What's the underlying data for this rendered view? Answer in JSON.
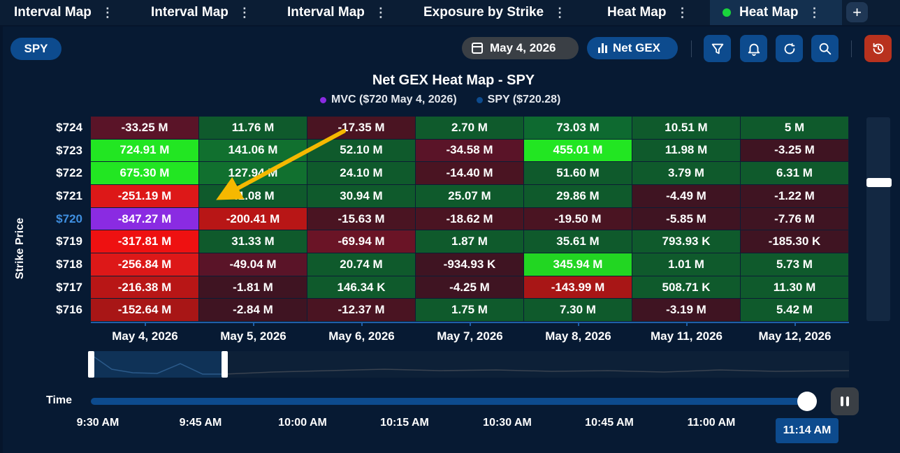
{
  "tabs": [
    {
      "label": "Interval Map",
      "active": false
    },
    {
      "label": "Interval Map",
      "active": false
    },
    {
      "label": "Interval Map",
      "active": false
    },
    {
      "label": "Exposure by Strike",
      "active": false
    },
    {
      "label": "Heat Map",
      "active": false
    },
    {
      "label": "Heat Map",
      "active": true
    }
  ],
  "tab_menu_glyph": "⋮",
  "tab_add_glyph": "+",
  "toolbar": {
    "symbol": "SPY",
    "date": "May 4, 2026",
    "metric": "Net GEX",
    "icons": [
      "filter-icon",
      "bell-icon",
      "refresh-icon",
      "search-icon",
      "reset-icon"
    ]
  },
  "chart": {
    "title": "Net GEX Heat Map - SPY",
    "legend": [
      {
        "label": "MVC ($720 May 4, 2026)",
        "color": "#8a2be2"
      },
      {
        "label": "SPY ($720.28)",
        "color": "#0d4b8e"
      }
    ],
    "y_axis_label": "Strike Price",
    "strikes": [
      "$724",
      "$723",
      "$722",
      "$721",
      "$720",
      "$719",
      "$718",
      "$717",
      "$716"
    ],
    "current_strike": "$720",
    "current_strike_color": "#3f8fe0",
    "dates": [
      "May 4, 2026",
      "May 5, 2026",
      "May 6, 2026",
      "May 7, 2026",
      "May 8, 2026",
      "May 11, 2026",
      "May 12, 2026"
    ],
    "cells": [
      [
        "-33.25 M",
        "11.76 M",
        "-17.35 M",
        "2.70 M",
        "73.03 M",
        "10.51 M",
        "5 M"
      ],
      [
        "724.91 M",
        "141.06 M",
        "52.10 M",
        "-34.58 M",
        "455.01 M",
        "11.98 M",
        "-3.25 M"
      ],
      [
        "675.30 M",
        "127.94 M",
        "24.10 M",
        "-14.40 M",
        "51.60 M",
        "3.79 M",
        "6.31 M"
      ],
      [
        "-251.19 M",
        "41.08 M",
        "30.94 M",
        "25.07 M",
        "29.86 M",
        "-4.49 M",
        "-1.22 M"
      ],
      [
        "-847.27 M",
        "-200.41 M",
        "-15.63 M",
        "-18.62 M",
        "-19.50 M",
        "-5.85 M",
        "-7.76 M"
      ],
      [
        "-317.81 M",
        "31.33 M",
        "-69.94 M",
        "1.87 M",
        "35.61 M",
        "793.93 K",
        "-185.30 K"
      ],
      [
        "-256.84 M",
        "-49.04 M",
        "20.74 M",
        "-934.93 K",
        "345.94 M",
        "1.01 M",
        "5.73 M"
      ],
      [
        "-216.38 M",
        "-1.81 M",
        "146.34 K",
        "-4.25 M",
        "-143.99 M",
        "508.71 K",
        "11.30 M"
      ],
      [
        "-152.64 M",
        "-2.84 M",
        "-12.37 M",
        "1.75 M",
        "7.30 M",
        "-3.19 M",
        "5.42 M"
      ]
    ],
    "cell_colors": [
      [
        "#5a1428",
        "#0f5a2c",
        "#4a1422",
        "#0f5a2c",
        "#0e6a30",
        "#0f5a2c",
        "#0f5a2c"
      ],
      [
        "#22e622",
        "#11702f",
        "#0f5a2c",
        "#5a1428",
        "#22e622",
        "#0f5a2c",
        "#3f1422"
      ],
      [
        "#22e622",
        "#11702f",
        "#0f5a2c",
        "#4a1422",
        "#0f5a2c",
        "#0f5a2c",
        "#0f5a2c"
      ],
      [
        "#dd1818",
        "#0f5a2c",
        "#0f5a2c",
        "#0f5a2c",
        "#0f5a2c",
        "#3f1422",
        "#3f1422"
      ],
      [
        "#8a2be2",
        "#b81616",
        "#4a1422",
        "#4a1422",
        "#4a1422",
        "#3f1422",
        "#3f1422"
      ],
      [
        "#ee1111",
        "#0f5a2c",
        "#6a1426",
        "#0f5a2c",
        "#0f5a2c",
        "#0f5a2c",
        "#3f1422"
      ],
      [
        "#dd1818",
        "#5a1428",
        "#0f5a2c",
        "#3f1422",
        "#22d622",
        "#0f5a2c",
        "#0f5a2c"
      ],
      [
        "#b81616",
        "#3f1422",
        "#0f5a2c",
        "#3f1422",
        "#a81616",
        "#0f5a2c",
        "#0f5a2c"
      ],
      [
        "#a81616",
        "#3f1422",
        "#4a1422",
        "#0f5a2c",
        "#0f5a2c",
        "#3f1422",
        "#0f5a2c"
      ]
    ]
  },
  "timeline": {
    "label": "Time",
    "ticks": [
      "9:30 AM",
      "9:45 AM",
      "10:00 AM",
      "10:15 AM",
      "10:30 AM",
      "10:45 AM",
      "11:00 AM"
    ],
    "current": "11:14 AM",
    "progress": 1.0
  }
}
